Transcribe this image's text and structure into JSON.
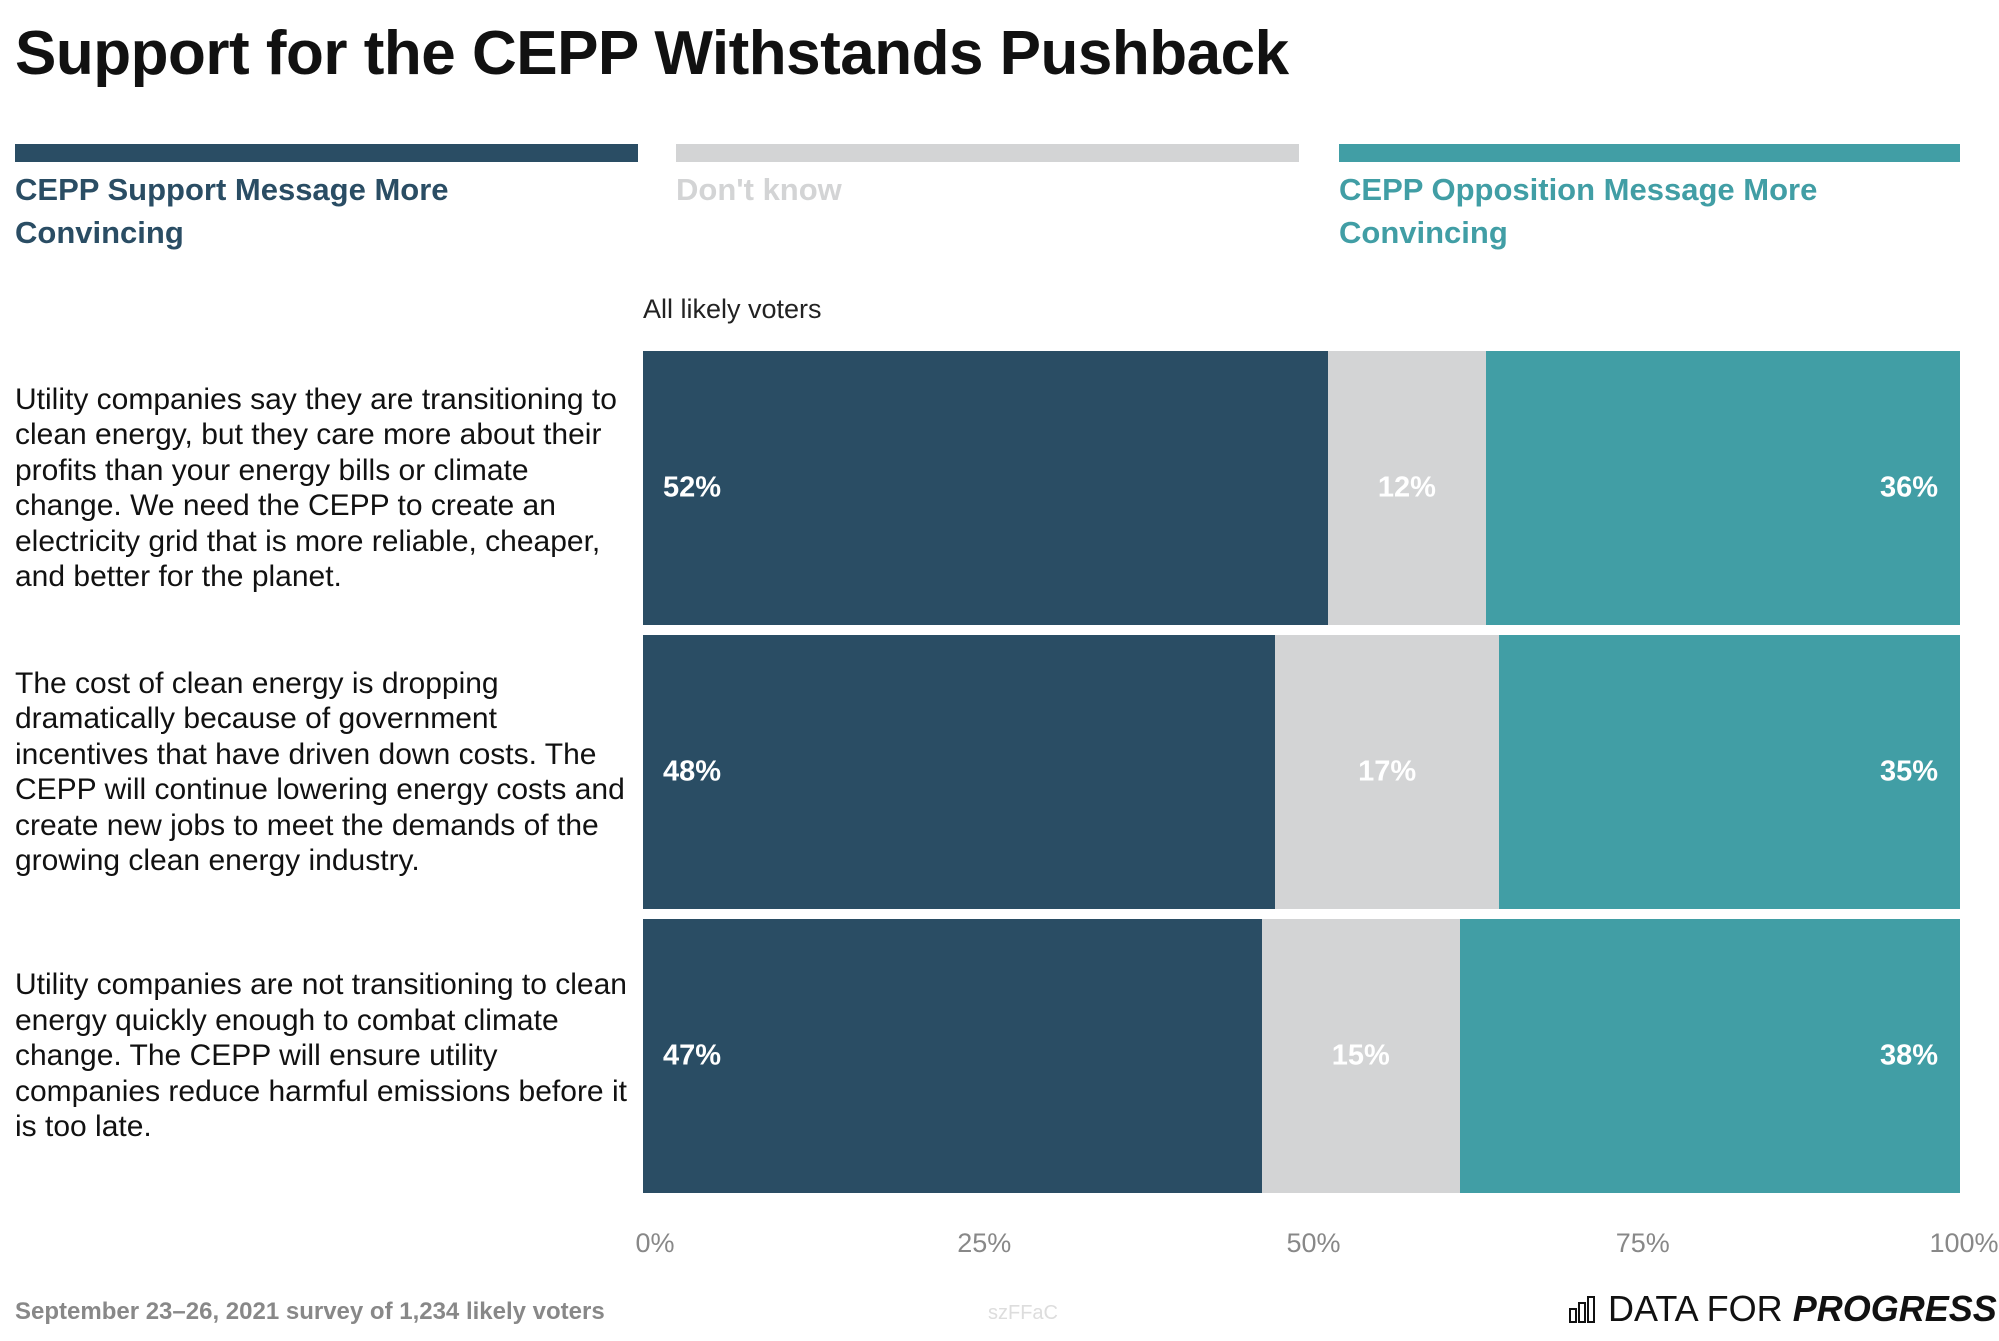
{
  "title": "Support for the CEPP Withstands Pushback",
  "colors": {
    "support": "#2a4d64",
    "dont_know": "#d3d4d5",
    "opposition": "#419ea5"
  },
  "chart_data": {
    "type": "bar",
    "orientation": "horizontal-stacked-100",
    "subgroup": "All likely voters",
    "legend": [
      "CEPP Support Message More Convincing",
      "Don't know",
      "CEPP Opposition Message More Convincing"
    ],
    "legend_placement": "top",
    "categories": [
      "Utility companies say they are transitioning to clean energy, but they care more about their profits than your energy bills or climate change. We need the CEPP to create an electricity grid that is more reliable, cheaper, and better for the planet.",
      "The cost of clean energy is dropping dramatically because of government incentives that have driven down costs. The CEPP will continue lowering energy costs and create new jobs to meet the demands of the growing clean energy industry.",
      "Utility companies are not transitioning to clean energy quickly enough to combat climate change. The CEPP will ensure utility companies reduce harmful emissions before it is too late."
    ],
    "series": [
      {
        "name": "CEPP Support Message More Convincing",
        "values": [
          52,
          48,
          47
        ],
        "labels": [
          "52%",
          "48%",
          "47%"
        ]
      },
      {
        "name": "Don't know",
        "values": [
          12,
          17,
          15
        ],
        "labels": [
          "12%",
          "17%",
          "15%"
        ]
      },
      {
        "name": "CEPP Opposition Message More Convincing",
        "values": [
          36,
          35,
          38
        ],
        "labels": [
          "36%",
          "35%",
          "38%"
        ]
      }
    ],
    "xlim": [
      0,
      100
    ],
    "xticks": [
      "0%",
      "25%",
      "50%",
      "75%",
      "100%"
    ],
    "grid": false
  },
  "footer": {
    "source": "September 23–26, 2021 survey of 1,234 likely voters",
    "code": "szFFaC",
    "logo_regular": "DATA FOR",
    "logo_bold": "PROGRESS"
  }
}
